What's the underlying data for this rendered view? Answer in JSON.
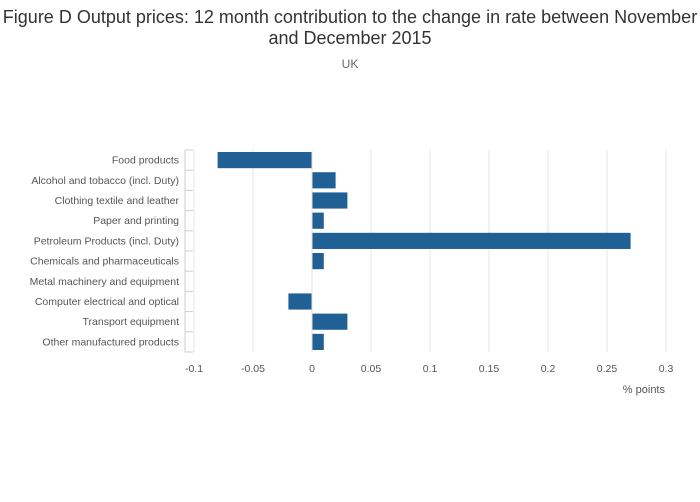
{
  "chart_data": {
    "type": "bar",
    "orientation": "horizontal",
    "title": "Figure D Output prices: 12 month contribution to the change in rate between November and December 2015",
    "subtitle": "UK",
    "xlabel": "% points",
    "ylabel": "",
    "xlim": [
      -0.1,
      0.3
    ],
    "xticks": [
      -0.1,
      -0.05,
      0,
      0.05,
      0.1,
      0.15,
      0.2,
      0.25,
      0.3
    ],
    "xtick_labels": [
      "-0.1",
      "-0.05",
      "0",
      "0.05",
      "0.1",
      "0.15",
      "0.2",
      "0.25",
      "0.3"
    ],
    "grid": true,
    "categories": [
      "Food products",
      "Alcohol and tobacco (incl. Duty)",
      "Clothing textile and leather",
      "Paper and printing",
      "Petroleum Products (incl. Duty)",
      "Chemicals and pharmaceuticals",
      "Metal machinery and equipment",
      "Computer electrical and optical",
      "Transport equipment",
      "Other manufactured products"
    ],
    "values": [
      -0.08,
      0.02,
      0.03,
      0.01,
      0.27,
      0.01,
      0,
      -0.02,
      0.03,
      0.01
    ],
    "bar_color": "#206095"
  }
}
